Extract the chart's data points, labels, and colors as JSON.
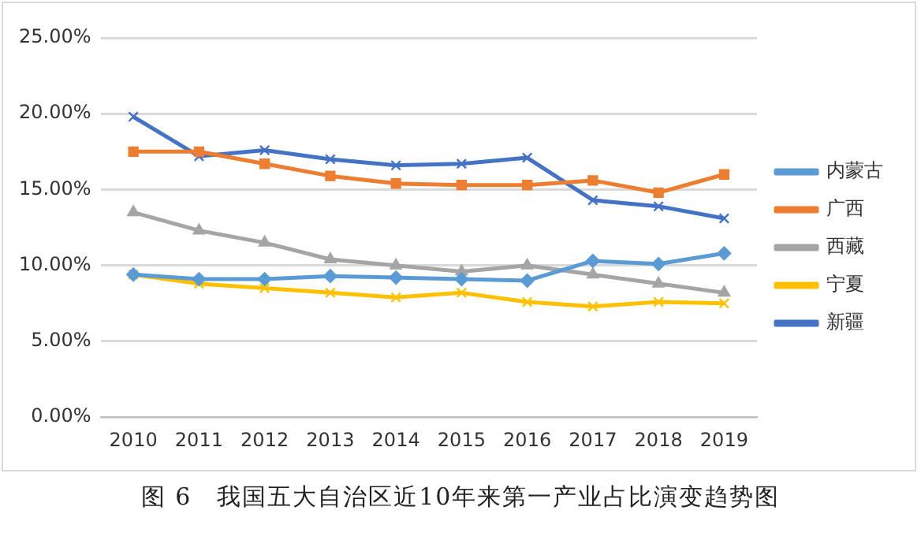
{
  "chart_data": {
    "type": "line",
    "title": "图 6　我国五大自治区近10年来第一产业占比演变趋势图",
    "categories": [
      "2010",
      "2011",
      "2012",
      "2013",
      "2014",
      "2015",
      "2016",
      "2017",
      "2018",
      "2019"
    ],
    "series": [
      {
        "name": "内蒙古",
        "color": "#5b9bd5",
        "marker": "diamond",
        "values": [
          9.4,
          9.1,
          9.1,
          9.3,
          9.2,
          9.1,
          9.0,
          10.3,
          10.1,
          10.8
        ]
      },
      {
        "name": "广西",
        "color": "#ed7d31",
        "marker": "square",
        "values": [
          17.5,
          17.5,
          16.7,
          15.9,
          15.4,
          15.3,
          15.3,
          15.6,
          14.8,
          16.0
        ]
      },
      {
        "name": "西藏",
        "color": "#a5a5a5",
        "marker": "triangle",
        "values": [
          13.5,
          12.3,
          11.5,
          10.4,
          10.0,
          9.6,
          10.0,
          9.4,
          8.8,
          8.2
        ]
      },
      {
        "name": "宁夏",
        "color": "#ffc000",
        "marker": "cross",
        "values": [
          9.4,
          8.8,
          8.5,
          8.2,
          7.9,
          8.2,
          7.6,
          7.3,
          7.6,
          7.5
        ]
      },
      {
        "name": "新疆",
        "color": "#4472c4",
        "marker": "cross",
        "values": [
          19.8,
          17.2,
          17.6,
          17.0,
          16.6,
          16.7,
          17.1,
          14.3,
          13.9,
          13.1
        ]
      }
    ],
    "ylim": [
      0,
      25
    ],
    "yticks": [
      {
        "value": 0,
        "label": "0.00%"
      },
      {
        "value": 5,
        "label": "5.00%"
      },
      {
        "value": 10,
        "label": "10.00%"
      },
      {
        "value": 15,
        "label": "15.00%"
      },
      {
        "value": 20,
        "label": "20.00%"
      },
      {
        "value": 25,
        "label": "25.00%"
      }
    ],
    "grid": "y",
    "legend": "right"
  }
}
